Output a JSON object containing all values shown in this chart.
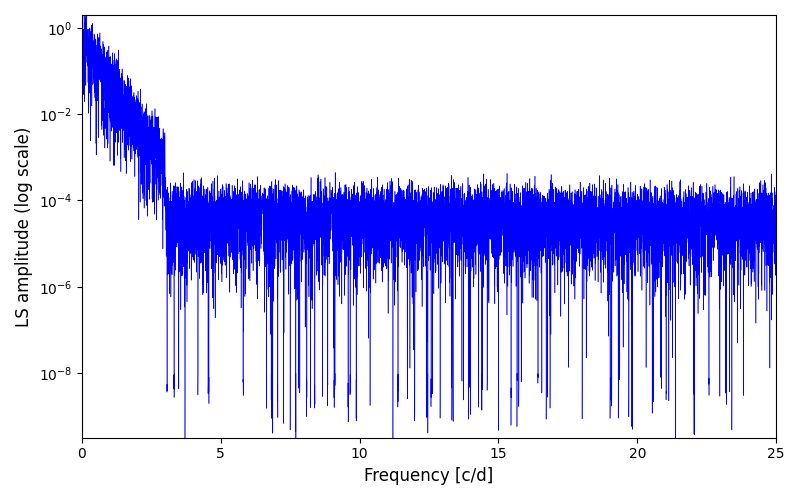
{
  "line_color": "#0000ff",
  "xlabel": "Frequency [c/d]",
  "ylabel": "LS amplitude (log scale)",
  "xlim": [
    0,
    25
  ],
  "ylim_log": [
    -9.5,
    0.3
  ],
  "seed": 42,
  "n_points": 10000,
  "figsize": [
    8.0,
    5.0
  ],
  "dpi": 100
}
